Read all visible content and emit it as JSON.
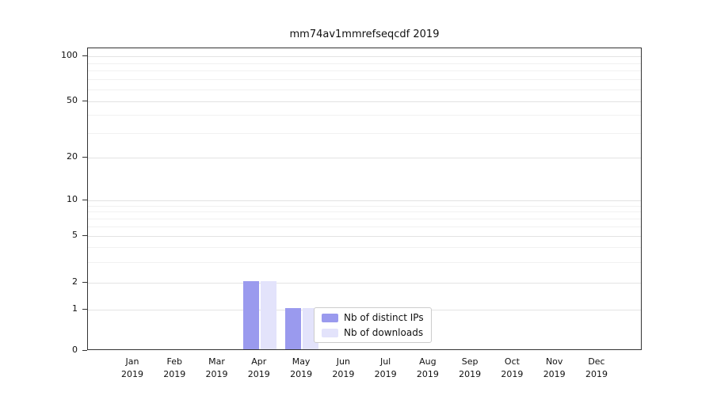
{
  "chart_data": {
    "type": "bar",
    "title": "mm74av1mmrefseqcdf 2019",
    "year": "2019",
    "categories": [
      "Jan",
      "Feb",
      "Mar",
      "Apr",
      "May",
      "Jun",
      "Jul",
      "Aug",
      "Sep",
      "Oct",
      "Nov",
      "Dec"
    ],
    "series": [
      {
        "name": "Nb of distinct IPs",
        "color": "#9a9aee",
        "values": [
          0,
          0,
          0,
          2,
          1,
          0,
          0,
          0,
          0,
          0,
          0,
          0
        ]
      },
      {
        "name": "Nb of downloads",
        "color": "#e3e3fb",
        "values": [
          0,
          0,
          0,
          2,
          1,
          0,
          0,
          0,
          0,
          0,
          0,
          0
        ]
      }
    ],
    "yticks": [
      0,
      1,
      2,
      5,
      10,
      20,
      50,
      100
    ],
    "minor_gridlines": [
      3,
      4,
      6,
      7,
      8,
      9,
      30,
      40,
      60,
      70,
      80,
      90
    ],
    "ylim": [
      0,
      100
    ],
    "yscale": "log-like",
    "grid": "horizontal",
    "legend_position": "inside-bottom-center"
  }
}
